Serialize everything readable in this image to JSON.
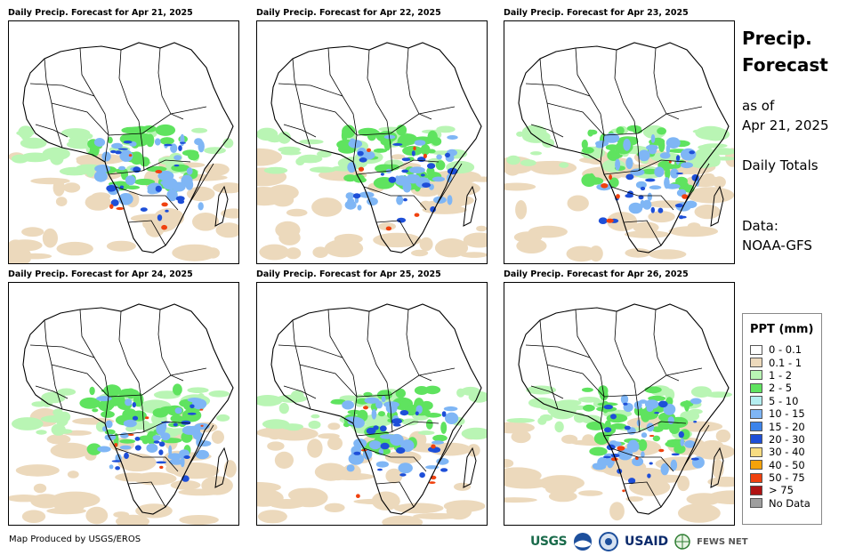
{
  "panels": [
    {
      "title": "Daily Precip. Forecast for Apr 21, 2025"
    },
    {
      "title": "Daily Precip. Forecast for Apr 22, 2025"
    },
    {
      "title": "Daily Precip. Forecast for Apr 23, 2025"
    },
    {
      "title": "Daily Precip. Forecast for Apr 24, 2025"
    },
    {
      "title": "Daily Precip. Forecast for Apr 25, 2025"
    },
    {
      "title": "Daily Precip. Forecast for Apr 26, 2025"
    }
  ],
  "sidebar": {
    "title_line1": "Precip.",
    "title_line2": "Forecast",
    "asof_line1": "as of",
    "asof_line2": "Apr 21, 2025",
    "totals": "Daily Totals",
    "data_label": "Data:",
    "data_source": "NOAA-GFS"
  },
  "legend": {
    "title": "PPT (mm)",
    "items": [
      {
        "label": "0 - 0.1",
        "color": "#ffffff"
      },
      {
        "label": "0.1 - 1",
        "color": "#ecd9bc"
      },
      {
        "label": "1 - 2",
        "color": "#b9f5b4"
      },
      {
        "label": "2 - 5",
        "color": "#5fe35f"
      },
      {
        "label": "5 - 10",
        "color": "#b4eef0"
      },
      {
        "label": "10 - 15",
        "color": "#7fb6f5"
      },
      {
        "label": "15 - 20",
        "color": "#3d84ea"
      },
      {
        "label": "20 - 30",
        "color": "#1e4fd8"
      },
      {
        "label": "30 - 40",
        "color": "#f7dc82"
      },
      {
        "label": "40 - 50",
        "color": "#f5a20a"
      },
      {
        "label": "50 - 75",
        "color": "#f0410e"
      },
      {
        "label": "> 75",
        "color": "#b01313"
      },
      {
        "label": "No Data",
        "color": "#9e9e9e"
      }
    ]
  },
  "footer": {
    "credit": "Map Produced by USGS/EROS",
    "logos": {
      "usgs": "USGS",
      "usaid": "USAID",
      "fews": "FEWS NET"
    }
  }
}
